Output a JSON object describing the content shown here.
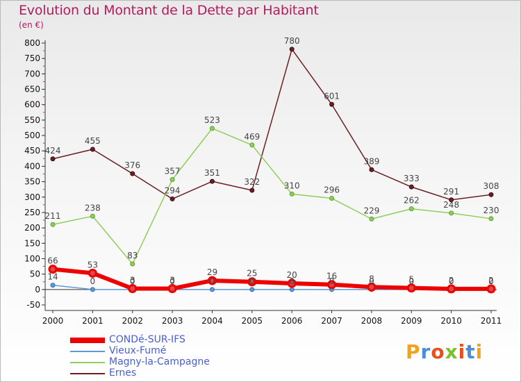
{
  "header": {
    "title": "Evolution du Montant de la Dette par Habitant",
    "unit": "(en €)"
  },
  "logo": {
    "text": "Proxiti",
    "colors": [
      "#f0a31c",
      "#4a8fd6",
      "#e94e1b",
      "#7cbf2f",
      "#e94e1b",
      "#4a8fd6",
      "#f0a31c"
    ]
  },
  "chart_data": {
    "type": "line",
    "categories": [
      "2000",
      "2001",
      "2002",
      "2003",
      "2004",
      "2005",
      "2006",
      "2007",
      "2008",
      "2009",
      "2010",
      "2011"
    ],
    "ylim": [
      -50,
      800
    ],
    "yticks": [
      "-50",
      "0",
      "50",
      "100",
      "150",
      "200",
      "250",
      "300",
      "350",
      "400",
      "450",
      "500",
      "550",
      "600",
      "650",
      "700",
      "750",
      "800"
    ],
    "grid": false,
    "legend_position": "bottom-left",
    "series": [
      {
        "name": "Ernes",
        "color": "#6b1f24",
        "values": [
          424,
          455,
          376,
          294,
          351,
          322,
          780,
          601,
          389,
          333,
          291,
          308
        ]
      },
      {
        "name": "Magny-la-Campagne",
        "color": "#8fce5b",
        "values": [
          211,
          238,
          83,
          357,
          523,
          469,
          310,
          296,
          229,
          262,
          248,
          230
        ]
      },
      {
        "name": "Vieux-Fumé",
        "color": "#5b9ad6",
        "values": [
          14,
          0,
          0,
          0,
          0,
          0,
          0,
          0,
          0,
          0,
          0,
          0
        ]
      },
      {
        "name": "CONDé-SUR-IFS",
        "color": "#ee0000",
        "values": [
          66,
          53,
          3,
          3,
          29,
          25,
          20,
          16,
          8,
          5,
          2,
          2
        ]
      }
    ],
    "legend_order": [
      "CONDé-SUR-IFS",
      "Vieux-Fumé",
      "Magny-la-Campagne",
      "Ernes"
    ]
  }
}
